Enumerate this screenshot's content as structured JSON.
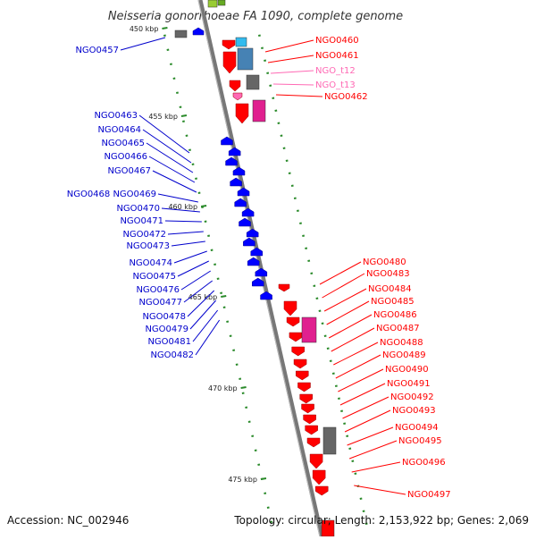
{
  "title": "Neisseria gonorrhoeae FA 1090, complete genome",
  "footer": {
    "accession": "Accession: NC_002946",
    "info": "Topology: circular; Length: 2,153,922 bp; Genes: 2,069"
  },
  "colors": {
    "forward": "#ff0000",
    "reverse": "#0000ff",
    "trna": "#ff69b4",
    "gray_feature": "#666666",
    "blue_feature": "#4682b4",
    "tick": "#2a8a2a",
    "backbone": "#888888"
  },
  "kbp_ticks": [
    {
      "kb": 450,
      "text": "450 kbp"
    },
    {
      "kb": 455,
      "text": "455 kbp"
    },
    {
      "kb": 460,
      "text": "460 kbp"
    },
    {
      "kb": 465,
      "text": "465 kbp"
    },
    {
      "kb": 470,
      "text": "470 kbp"
    },
    {
      "kb": 475,
      "text": "475 kbp"
    }
  ],
  "labels": {
    "left": [
      "NGO0457",
      "NGO0463",
      "NGO0464",
      "NGO0465",
      "NGO0466",
      "NGO0467",
      "NGO0468 NGO0469",
      "NGO0470",
      "NGO0471",
      "NGO0472",
      "NGO0473",
      "NGO0474",
      "NGO0475",
      "NGO0476",
      "NGO0477",
      "NGO0478",
      "NGO0479",
      "NGO0481",
      "NGO0482"
    ],
    "right_top": [
      "NGO0460",
      "NGO0461",
      "NGO_t12",
      "NGO_t13",
      "NGO0462"
    ],
    "right_bottom": [
      "NGO0480",
      "NGO0483",
      "NGO0484",
      "NGO0485",
      "NGO0486",
      "NGO0487",
      "NGO0488",
      "NGO0489",
      "NGO0490",
      "NGO0491",
      "NGO0492",
      "NGO0493",
      "NGO0494",
      "NGO0495",
      "NGO0496",
      "NGO0497"
    ]
  }
}
